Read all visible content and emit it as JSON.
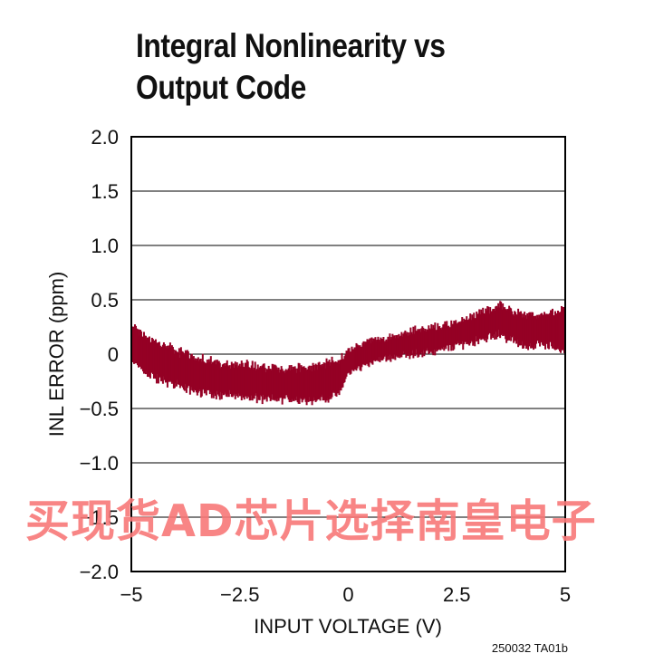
{
  "title_lines": [
    "Integral Nonlinearity vs",
    "Output Code"
  ],
  "figure_ref": "250032 TA01b",
  "watermark": "买现货AD芯片选择南皇电子",
  "colors": {
    "trace": "#950125",
    "axis": "#000000",
    "grid": "#000000",
    "watermark": "#f77878"
  },
  "chart_data": {
    "type": "line",
    "title": "Integral Nonlinearity vs Output Code",
    "xlabel": "INPUT VOLTAGE (V)",
    "ylabel": "INL ERROR (ppm)",
    "xlim": [
      -5,
      5
    ],
    "ylim": [
      -2.0,
      2.0
    ],
    "x_ticks": [
      "−5",
      "−2.5",
      "0",
      "2.5",
      "5"
    ],
    "x_tick_values": [
      -5,
      -2.5,
      0,
      2.5,
      5
    ],
    "y_ticks": [
      "2.0",
      "1.5",
      "1.0",
      "0.5",
      "0",
      "−0.5",
      "−1.0",
      "−1.5",
      "−2.0"
    ],
    "y_tick_values": [
      2.0,
      1.5,
      1.0,
      0.5,
      0,
      -0.5,
      -1.0,
      -1.5,
      -2.0
    ],
    "grid": "horizontal",
    "series": [
      {
        "x": [
          -5.0,
          -4.5,
          -4.0,
          -3.5,
          -3.0,
          -2.5,
          -2.0,
          -1.5,
          -1.0,
          -0.5,
          -0.2,
          0.0,
          0.5,
          1.0,
          1.5,
          2.0,
          2.5,
          3.0,
          3.5,
          4.0,
          4.5,
          5.0
        ],
        "upper": [
          0.3,
          0.15,
          0.08,
          0.0,
          -0.05,
          -0.05,
          -0.08,
          -0.1,
          -0.1,
          -0.05,
          -0.02,
          0.05,
          0.15,
          0.18,
          0.24,
          0.28,
          0.32,
          0.4,
          0.48,
          0.4,
          0.38,
          0.45
        ],
        "lower": [
          -0.1,
          -0.25,
          -0.32,
          -0.38,
          -0.4,
          -0.43,
          -0.45,
          -0.45,
          -0.45,
          -0.45,
          -0.4,
          -0.2,
          -0.1,
          -0.05,
          -0.02,
          0.0,
          0.05,
          0.1,
          0.15,
          0.05,
          0.05,
          0.0
        ]
      }
    ]
  }
}
